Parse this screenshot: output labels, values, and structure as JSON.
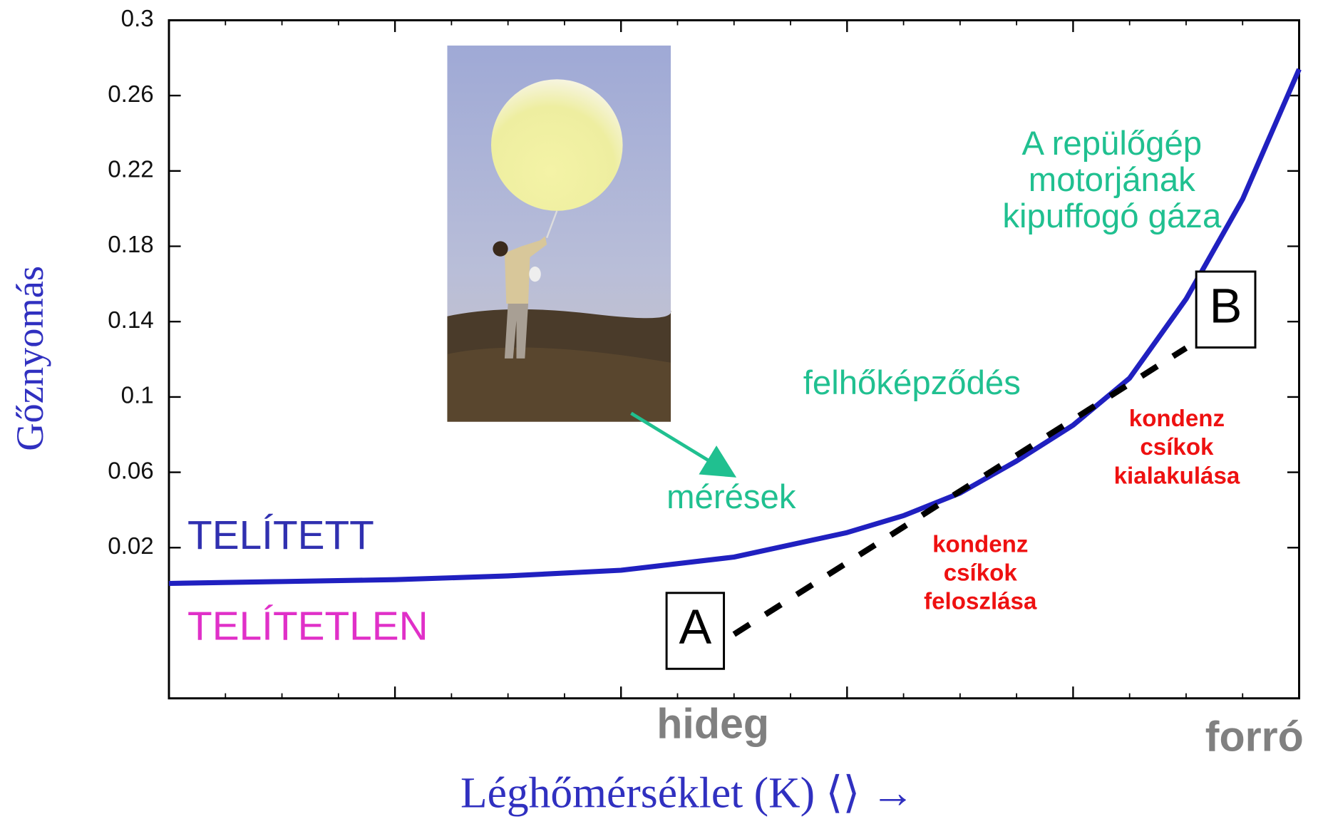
{
  "chart_data": {
    "type": "line",
    "ylabel": "Gőznyomás",
    "xlabel": "Léghőmérséklet (K) ⟨⟩ →",
    "xlim": [
      0,
      5
    ],
    "xticks": [
      1,
      2,
      3,
      4
    ],
    "ylim": [
      -0.06,
      0.3
    ],
    "yticks": [
      0.02,
      0.06,
      0.1,
      0.14,
      0.18,
      0.22,
      0.26,
      0.3
    ],
    "series": [
      {
        "color": "#2020c0",
        "x": [
          0,
          0.5,
          1,
          1.5,
          2,
          2.5,
          3,
          3.25,
          3.5,
          3.75,
          4,
          4.25,
          4.5,
          4.75,
          5
        ],
        "values": [
          0.001,
          0.002,
          0.003,
          0.005,
          0.008,
          0.015,
          0.028,
          0.037,
          0.049,
          0.066,
          0.085,
          0.11,
          0.152,
          0.205,
          0.274
        ]
      },
      {
        "color": "#000000",
        "dashed": true,
        "x": [
          2.5,
          4.5
        ],
        "values": [
          -0.026,
          0.126
        ]
      }
    ],
    "annotations": [
      {
        "text": "TELÍTETT",
        "color": "#3030b0"
      },
      {
        "text": "TELÍTETLEN",
        "color": "#e030c8"
      },
      {
        "text": "mérések",
        "color": "#20c090"
      },
      {
        "text": "felhőképződés",
        "color": "#20c090"
      },
      {
        "lines": [
          "A repülőgép",
          "motorjának",
          "kipuffogó gáza"
        ],
        "color": "#20c090"
      },
      {
        "lines": [
          "kondenz",
          "csíkok",
          "feloszlása"
        ],
        "color": "#ee1111"
      },
      {
        "lines": [
          "kondenz",
          "csíkok",
          "kialakulása"
        ],
        "color": "#ee1111"
      },
      {
        "text": "A",
        "color": "#000000"
      },
      {
        "text": "B",
        "color": "#000000"
      },
      {
        "text": "hideg",
        "color": "#808080"
      },
      {
        "text": "forró",
        "color": "#808080"
      }
    ]
  }
}
